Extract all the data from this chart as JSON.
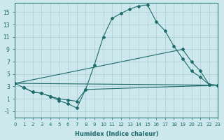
{
  "xlabel": "Humidex (Indice chaleur)",
  "bg_color": "#cce8ec",
  "grid_color": "#aacdd4",
  "line_color": "#1e6b6b",
  "xlim": [
    0,
    23
  ],
  "ylim": [
    -2,
    16.5
  ],
  "xticks": [
    0,
    1,
    2,
    3,
    4,
    5,
    6,
    7,
    8,
    9,
    10,
    11,
    12,
    13,
    14,
    15,
    16,
    17,
    18,
    19,
    20,
    21,
    22,
    23
  ],
  "yticks": [
    -1,
    1,
    3,
    5,
    7,
    9,
    11,
    13,
    15
  ],
  "series": [
    {
      "x": [
        0,
        1,
        2,
        3,
        4,
        5,
        6,
        7,
        8,
        9,
        10,
        11,
        12,
        13,
        14,
        15,
        16,
        17,
        18,
        19,
        20,
        21,
        22,
        23
      ],
      "y": [
        3.5,
        2.8,
        2.1,
        1.9,
        1.4,
        0.7,
        0.2,
        -0.5,
        2.5,
        6.5,
        11.0,
        14.0,
        14.8,
        15.5,
        16.0,
        16.2,
        13.5,
        12.0,
        9.5,
        7.5,
        5.5,
        4.5,
        3.3,
        3.2
      ]
    },
    {
      "x": [
        0,
        19,
        20,
        21,
        22,
        23
      ],
      "y": [
        3.5,
        9.0,
        7.0,
        5.5,
        3.3,
        3.2
      ]
    },
    {
      "x": [
        0,
        23
      ],
      "y": [
        3.5,
        3.2
      ]
    },
    {
      "x": [
        1,
        2,
        3,
        4,
        5,
        6,
        7,
        8,
        23
      ],
      "y": [
        2.8,
        2.1,
        1.9,
        1.4,
        1.0,
        0.8,
        0.6,
        2.5,
        3.2
      ]
    }
  ]
}
